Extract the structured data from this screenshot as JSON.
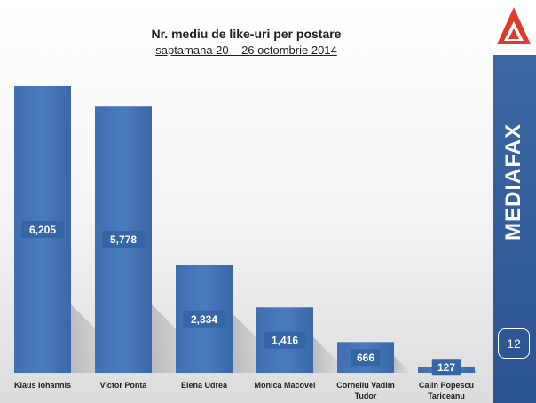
{
  "chart_data": {
    "type": "bar",
    "title": "Nr. mediu de like-uri per postare",
    "subtitle": "saptamana 20 – 26 octombrie 2014",
    "categories": [
      "Klaus Iohannis",
      "Victor Ponta",
      "Elena Udrea",
      "Monica Macovei",
      "Corneliu Vadim Tudor",
      "Calin Popescu Tariceanu"
    ],
    "values": [
      6205,
      5778,
      2334,
      1416,
      666,
      127
    ],
    "value_labels": [
      "6,205",
      "5,778",
      "2,334",
      "1,416",
      "666",
      "127"
    ],
    "ylim": [
      0,
      6205
    ],
    "grid": false,
    "bar_color": "#4a7bbd"
  },
  "sidebar": {
    "brand": "MEDIAFAX",
    "page_number": "12",
    "accent_color": "#e03a2b",
    "logo_icon": "mediafax-triangle-logo-icon"
  }
}
